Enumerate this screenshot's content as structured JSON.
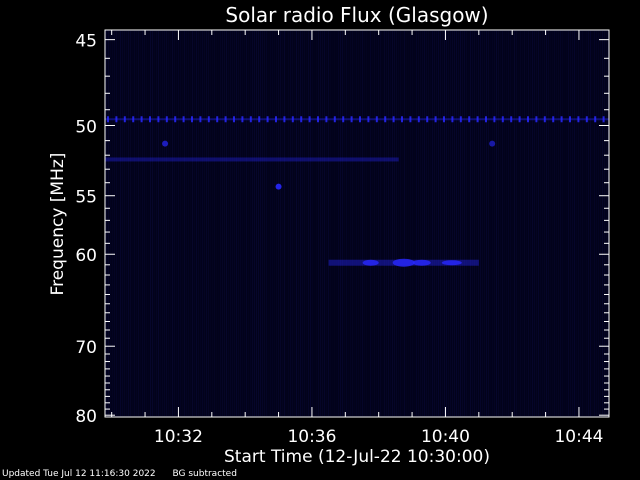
{
  "chart_data": {
    "type": "heatmap",
    "title": "Solar radio Flux (Glasgow)",
    "xlabel": "Start Time (12-Jul-22 10:30:00)",
    "ylabel": "Frequency [MHz]",
    "x_ticks": [
      "10:32",
      "10:36",
      "10:40",
      "10:44"
    ],
    "y_ticks": [
      "45",
      "50",
      "55",
      "60",
      "70",
      "80"
    ],
    "x_range_minutes_after_10_30": [
      -0.2,
      14.9
    ],
    "y_range_mhz": [
      44.5,
      80.3
    ],
    "y_scale": "reciprocal",
    "colormap": "black-to-blue",
    "features": [
      {
        "kind": "dotted-line",
        "freq_mhz": 49.6,
        "t_start": -0.2,
        "t_end": 14.9,
        "intensity": 0.85
      },
      {
        "kind": "line",
        "freq_mhz": 52.3,
        "t_start": -0.2,
        "t_end": 8.6,
        "intensity": 0.35
      },
      {
        "kind": "blob",
        "freq_mhz": 51.2,
        "t": 1.6,
        "intensity": 0.7
      },
      {
        "kind": "blob",
        "freq_mhz": 54.3,
        "t": 5.0,
        "intensity": 0.9
      },
      {
        "kind": "blob",
        "freq_mhz": 51.2,
        "t": 11.4,
        "intensity": 0.6
      },
      {
        "kind": "burst",
        "freq_mhz": 60.8,
        "t_start": 6.5,
        "t_end": 11.0,
        "intensity": 0.8
      }
    ]
  },
  "footer": {
    "updated": "Updated Tue Jul 12 11:16:30 2022",
    "note": "BG subtracted"
  }
}
